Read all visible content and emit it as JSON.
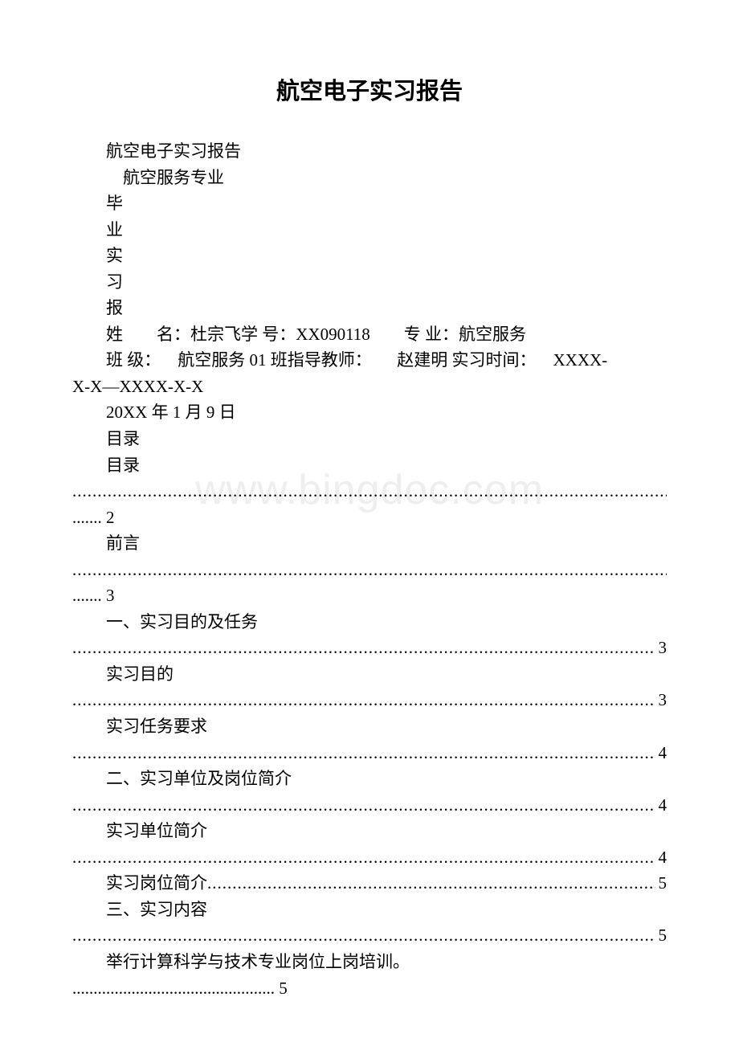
{
  "document": {
    "title": "航空电子实习报告",
    "subtitle": "航空电子实习报告",
    "major_line": "航空服务专业",
    "vertical_label": [
      "毕",
      "业",
      "实",
      "习",
      "报"
    ],
    "info_line_1": "姓　　名：杜宗飞学 号：XX090118　　专 业：航空服务",
    "info_line_2": "班 级： 航空服务 01 班指导教师：　　赵建明 实习时间： XXXX-",
    "info_line_2b": "X-X—XXXX-X-X",
    "date": "20XX 年 1 月 9 日",
    "toc_heading": "目录",
    "watermark": "www.bingdoc.com",
    "toc": [
      {
        "label": "目录",
        "page": "2",
        "two_line": true
      },
      {
        "label": "前言",
        "page": "3",
        "two_line": true
      },
      {
        "label": "一、实习目的及任务",
        "page": "3",
        "two_line": true
      },
      {
        "label": "实习目的",
        "page": "3",
        "two_line": true
      },
      {
        "label": "实习任务要求",
        "page": "4",
        "two_line": true
      },
      {
        "label": "二、实习单位及岗位简介",
        "page": "4",
        "two_line": true
      },
      {
        "label": "实习单位简介",
        "page": "4",
        "two_line": true
      },
      {
        "label": "实习岗位简介",
        "page": "5",
        "two_line": false
      },
      {
        "label": "三、实习内容",
        "page": "5",
        "two_line": true
      },
      {
        "label": "举行计算科学与技术专业岗位上岗培训。",
        "page": "5",
        "two_line": true,
        "short_dots": true
      }
    ],
    "colors": {
      "text": "#000000",
      "background": "#ffffff",
      "watermark": "#eeeeee"
    },
    "fonts": {
      "title_size": 29,
      "body_size": 21
    }
  }
}
